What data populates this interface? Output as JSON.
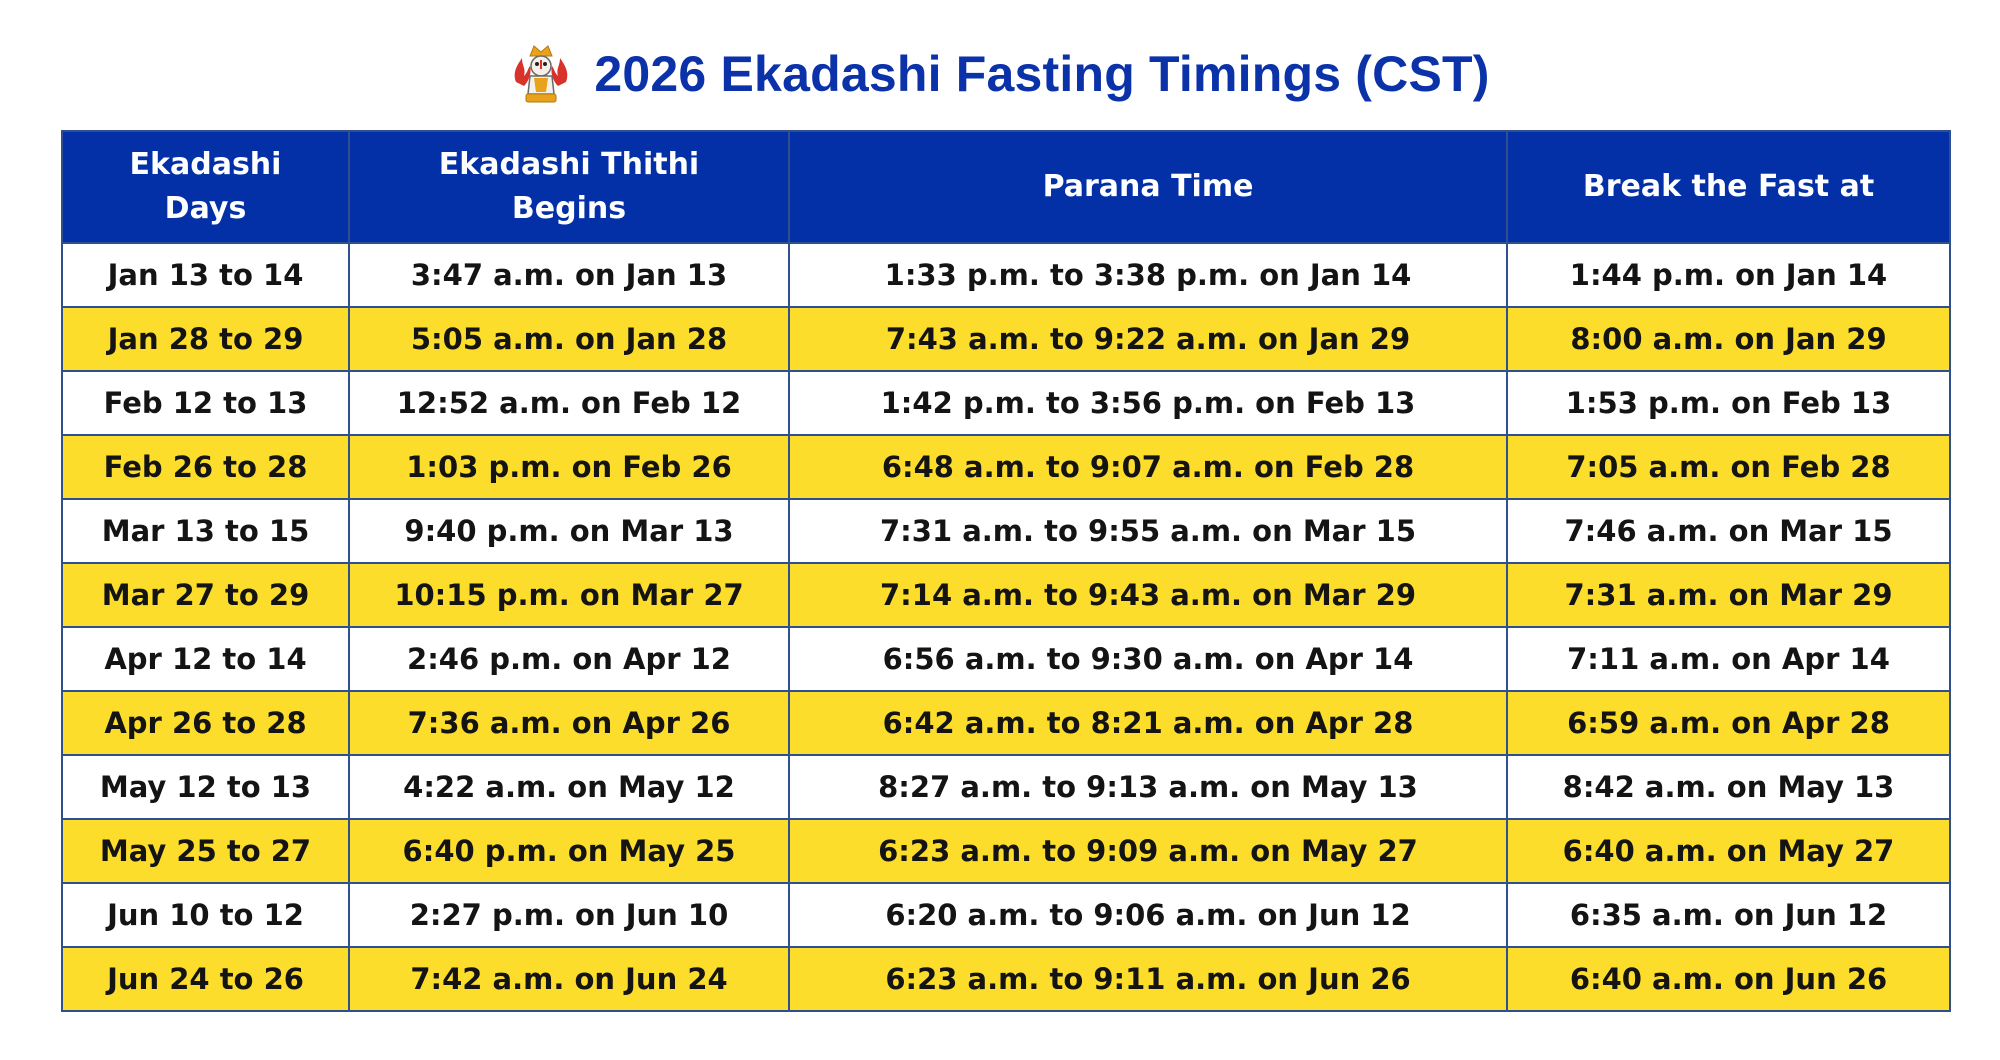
{
  "title": "2026 Ekadashi Fasting Timings (CST)",
  "logo_icon": "temple-deity-icon",
  "colors": {
    "title": "#0b32a8",
    "header_bg": "#0330a6",
    "row_alt": "#fcdd2c",
    "border": "#2f4f8f"
  },
  "table": {
    "headers": [
      "Ekadashi Days",
      "Ekadashi Thithi Begins",
      "Parana Time",
      "Break the Fast at"
    ],
    "rows": [
      [
        "Jan 13 to 14",
        "3:47 a.m. on Jan 13",
        "1:33 p.m. to 3:38 p.m. on Jan 14",
        "1:44 p.m. on Jan 14"
      ],
      [
        "Jan 28 to 29",
        "5:05 a.m. on Jan 28",
        "7:43 a.m. to 9:22 a.m. on Jan 29",
        "8:00 a.m. on Jan 29"
      ],
      [
        "Feb 12 to 13",
        "12:52 a.m. on Feb 12",
        "1:42 p.m. to 3:56 p.m. on Feb 13",
        "1:53 p.m. on Feb 13"
      ],
      [
        "Feb 26 to 28",
        "1:03 p.m. on Feb 26",
        "6:48 a.m. to 9:07 a.m. on Feb 28",
        "7:05 a.m. on Feb 28"
      ],
      [
        "Mar 13 to 15",
        "9:40 p.m. on Mar 13",
        "7:31 a.m. to 9:55 a.m. on Mar 15",
        "7:46 a.m. on Mar 15"
      ],
      [
        "Mar 27 to 29",
        "10:15 p.m. on Mar 27",
        "7:14 a.m. to 9:43 a.m. on Mar 29",
        "7:31 a.m. on Mar 29"
      ],
      [
        "Apr 12 to 14",
        "2:46 p.m. on Apr 12",
        "6:56 a.m. to 9:30 a.m. on Apr 14",
        "7:11 a.m. on Apr 14"
      ],
      [
        "Apr 26 to 28",
        "7:36 a.m. on Apr 26",
        "6:42 a.m. to 8:21 a.m. on Apr 28",
        "6:59 a.m. on Apr 28"
      ],
      [
        "May 12 to 13",
        "4:22 a.m. on May 12",
        "8:27 a.m. to 9:13 a.m. on May 13",
        "8:42 a.m. on May 13"
      ],
      [
        "May 25 to 27",
        "6:40 p.m. on May 25",
        "6:23 a.m. to 9:09 a.m. on May 27",
        "6:40 a.m. on May 27"
      ],
      [
        "Jun 10 to 12",
        "2:27 p.m. on Jun 10",
        "6:20 a.m. to 9:06 a.m. on Jun 12",
        "6:35 a.m. on Jun 12"
      ],
      [
        "Jun 24 to 26",
        "7:42 a.m. on Jun 24",
        "6:23 a.m. to 9:11 a.m. on Jun 26",
        "6:40 a.m. on Jun 26"
      ]
    ]
  }
}
